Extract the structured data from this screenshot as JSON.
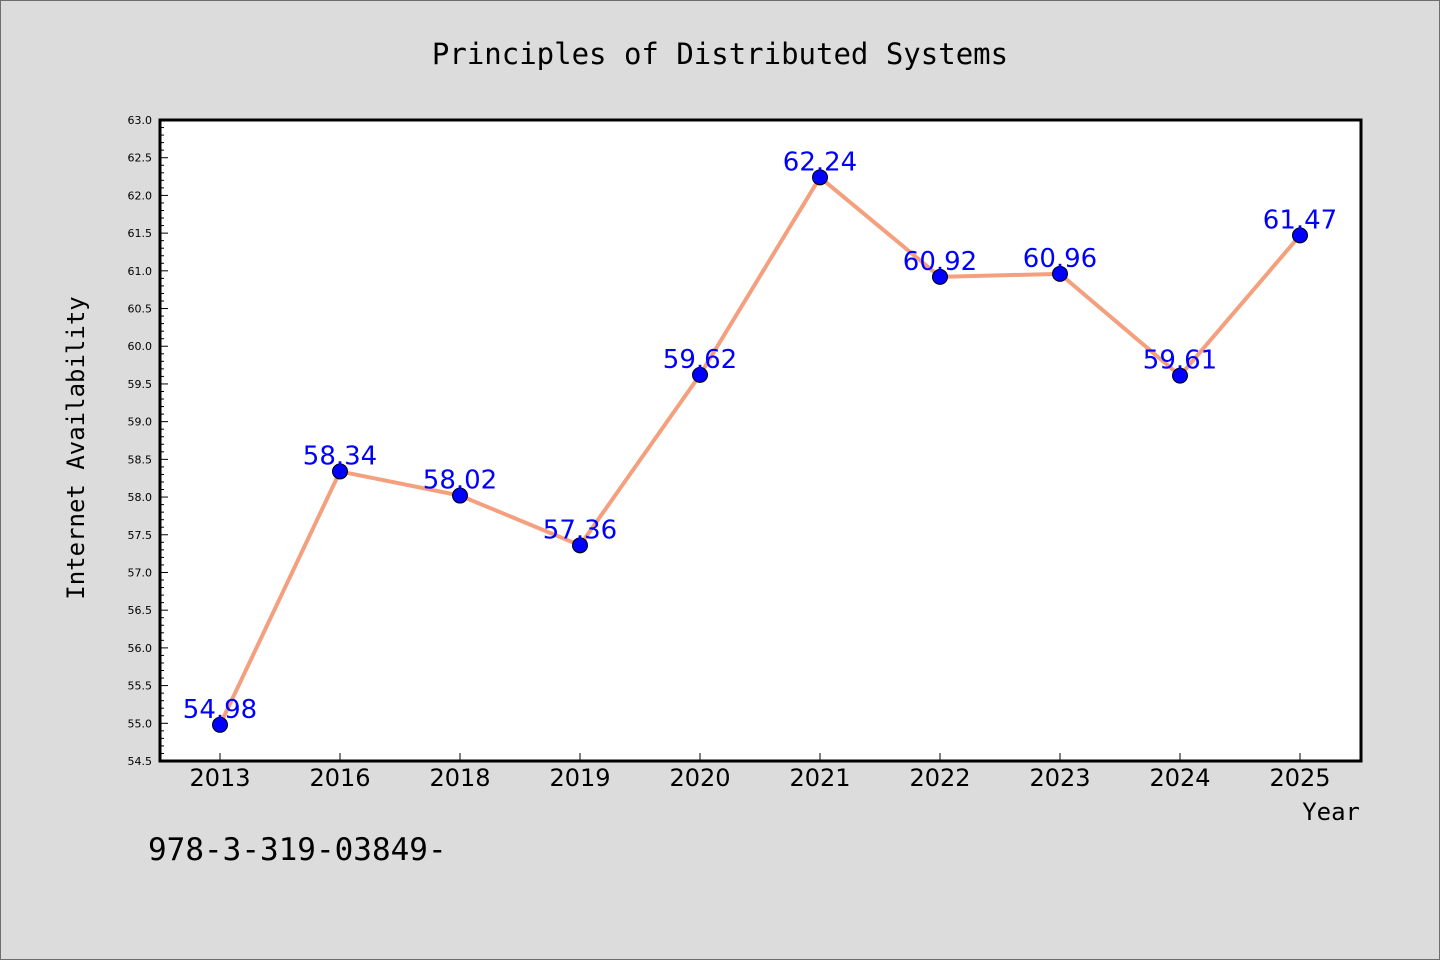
{
  "chart_data": {
    "type": "line",
    "title": "Principles of Distributed Systems",
    "xlabel": "Year",
    "ylabel": "Internet Availability",
    "categories": [
      "2013",
      "2016",
      "2018",
      "2019",
      "2020",
      "2021",
      "2022",
      "2023",
      "2024",
      "2025"
    ],
    "series": [
      {
        "values": [
          54.98,
          58.34,
          58.02,
          57.36,
          59.62,
          62.24,
          60.92,
          60.96,
          59.61,
          61.47
        ],
        "data_labels": [
          "54.98",
          "58.34",
          "58.02",
          "57.36",
          "59.62",
          "62.24",
          "60.92",
          "60.96",
          "59.61",
          "61.47"
        ]
      }
    ],
    "ylim": [
      54.5,
      63.0
    ],
    "yticks": [
      "54.5",
      "55.0",
      "55.5",
      "56.0",
      "56.5",
      "57.0",
      "57.5",
      "58.0",
      "58.5",
      "59.0",
      "59.5",
      "60.0",
      "60.5",
      "61.0",
      "61.5",
      "62.0",
      "62.5",
      "63.0"
    ],
    "grid": false,
    "colors": {
      "line": "#f4a07e",
      "marker": "#0000ff",
      "data_label": "#0000ff",
      "plot_background": "#ffffff",
      "figure_background": "#dcdcdc"
    }
  },
  "footer": {
    "isbn_text": "978-3-319-03849-"
  }
}
